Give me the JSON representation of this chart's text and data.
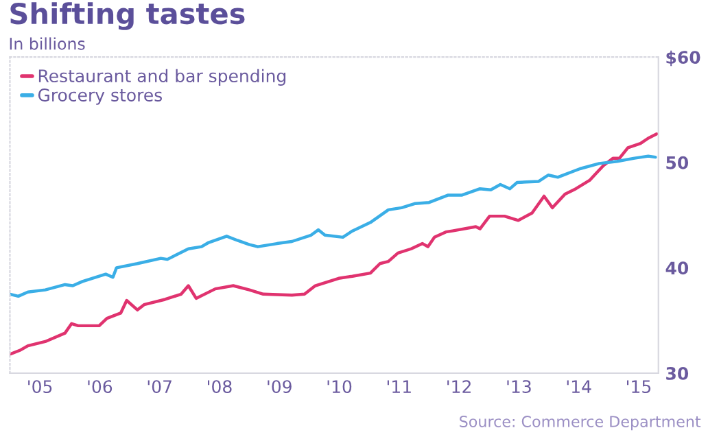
{
  "chart_data": {
    "type": "line",
    "title": "Shifting tastes",
    "subtitle": "In billions",
    "annotations": [
      "Source: Commerce Department"
    ],
    "series": [
      {
        "name": "Restaurant and bar spending",
        "color": "#e0336f",
        "x": [
          2004.5,
          2004.68,
          2004.8,
          2005.09,
          2005.42,
          2005.53,
          2005.64,
          2005.99,
          2006.12,
          2006.35,
          2006.45,
          2006.63,
          2006.74,
          2007.09,
          2007.36,
          2007.48,
          2007.61,
          2007.93,
          2008.23,
          2008.5,
          2008.73,
          2009.21,
          2009.42,
          2009.6,
          2009.99,
          2010.22,
          2010.52,
          2010.68,
          2010.82,
          2010.98,
          2011.2,
          2011.39,
          2011.48,
          2011.59,
          2011.78,
          2011.89,
          2012.28,
          2012.35,
          2012.51,
          2012.76,
          2012.99,
          2013.22,
          2013.42,
          2013.56,
          2013.77,
          2013.95,
          2014.18,
          2014.41,
          2014.57,
          2014.68,
          2014.82,
          2015.03,
          2015.16,
          2015.3
        ],
        "values": [
          31.8,
          32.2,
          32.6,
          33.0,
          33.8,
          34.7,
          34.5,
          34.5,
          35.2,
          35.7,
          36.9,
          36.0,
          36.5,
          37.0,
          37.5,
          38.3,
          37.1,
          38.0,
          38.3,
          37.9,
          37.5,
          37.4,
          37.5,
          38.3,
          39.0,
          39.2,
          39.5,
          40.4,
          40.6,
          41.4,
          41.8,
          42.3,
          42.0,
          42.9,
          43.4,
          43.5,
          43.9,
          43.7,
          44.9,
          44.9,
          44.5,
          45.2,
          46.8,
          45.7,
          47.0,
          47.5,
          48.3,
          49.7,
          50.4,
          50.4,
          51.4,
          51.8,
          52.3,
          52.7
        ]
      },
      {
        "name": "Grocery stores",
        "color": "#3aaee6",
        "x": [
          2004.5,
          2004.64,
          2004.8,
          2005.09,
          2005.42,
          2005.55,
          2005.71,
          2006.1,
          2006.22,
          2006.28,
          2006.63,
          2007.02,
          2007.13,
          2007.48,
          2007.7,
          2007.82,
          2008.12,
          2008.3,
          2008.5,
          2008.64,
          2008.96,
          2009.21,
          2009.53,
          2009.65,
          2009.76,
          2010.06,
          2010.22,
          2010.52,
          2010.82,
          2011.04,
          2011.27,
          2011.5,
          2011.82,
          2012.05,
          2012.35,
          2012.53,
          2012.69,
          2012.85,
          2012.97,
          2013.33,
          2013.49,
          2013.65,
          2014.02,
          2014.34,
          2014.64,
          2014.93,
          2015.16,
          2015.28
        ],
        "values": [
          37.5,
          37.3,
          37.7,
          37.9,
          38.4,
          38.3,
          38.7,
          39.4,
          39.1,
          40.0,
          40.4,
          40.9,
          40.8,
          41.8,
          42.0,
          42.4,
          43.0,
          42.6,
          42.2,
          42.0,
          42.3,
          42.5,
          43.1,
          43.6,
          43.1,
          42.9,
          43.5,
          44.3,
          45.5,
          45.7,
          46.1,
          46.2,
          46.9,
          46.9,
          47.5,
          47.4,
          47.9,
          47.5,
          48.1,
          48.2,
          48.8,
          48.6,
          49.4,
          49.9,
          50.1,
          50.4,
          50.6,
          50.5
        ]
      }
    ],
    "xlim": [
      2004.5,
      2015.33
    ],
    "xticks": [
      {
        "value": 2005,
        "label": "'05"
      },
      {
        "value": 2006,
        "label": "'06"
      },
      {
        "value": 2007,
        "label": "'07"
      },
      {
        "value": 2008,
        "label": "'08"
      },
      {
        "value": 2009,
        "label": "'09"
      },
      {
        "value": 2010,
        "label": "'10"
      },
      {
        "value": 2011,
        "label": "'11"
      },
      {
        "value": 2012,
        "label": "'12"
      },
      {
        "value": 2013,
        "label": "'13"
      },
      {
        "value": 2014,
        "label": "'14"
      },
      {
        "value": 2015,
        "label": "'15"
      }
    ],
    "ylim": [
      30,
      60
    ],
    "yticks": [
      30,
      40,
      50,
      {
        "value": 60,
        "label": "$60"
      }
    ],
    "legend": "top left",
    "grid": false
  }
}
